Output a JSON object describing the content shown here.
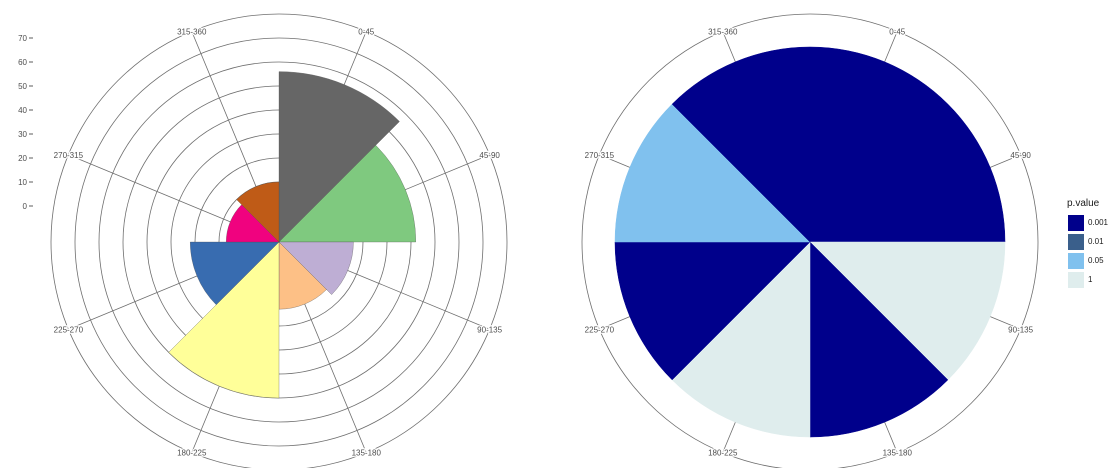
{
  "chart_data": [
    {
      "type": "polar-bar",
      "sectors": [
        "0-45",
        "45-90",
        "90-135",
        "135-180",
        "180-225",
        "225-270",
        "270-315",
        "315-360"
      ],
      "values": [
        56,
        42,
        16,
        13,
        50,
        22,
        7,
        10
      ],
      "colors": [
        "#666666",
        "#7FC97F",
        "#BEAED4",
        "#FDC086",
        "#FFFF99",
        "#386CB0",
        "#F0027F",
        "#BF5B17"
      ],
      "radial_ticks": [
        "0",
        "10",
        "20",
        "30",
        "40",
        "50",
        "60",
        "70"
      ],
      "radial_tick_values": [
        0,
        10,
        20,
        30,
        40,
        50,
        60,
        70
      ],
      "ylim": [
        -15,
        80
      ],
      "grid": true
    },
    {
      "type": "pie",
      "sectors": [
        "0-45",
        "45-90",
        "90-135",
        "135-180",
        "180-225",
        "225-270",
        "270-315",
        "315-360"
      ],
      "fill_levels": [
        "0.001",
        "0.001",
        "1",
        "0.001",
        "1",
        "0.001",
        "0.05",
        "0.001"
      ],
      "legend": {
        "title": "p.value",
        "position": "right",
        "items": [
          {
            "label": "0.001",
            "color": "#00008B"
          },
          {
            "label": "0.01",
            "color": "#3A5F8B"
          },
          {
            "label": "0.05",
            "color": "#80C1EE"
          },
          {
            "label": "1",
            "color": "#DFEDED"
          }
        ]
      }
    }
  ]
}
